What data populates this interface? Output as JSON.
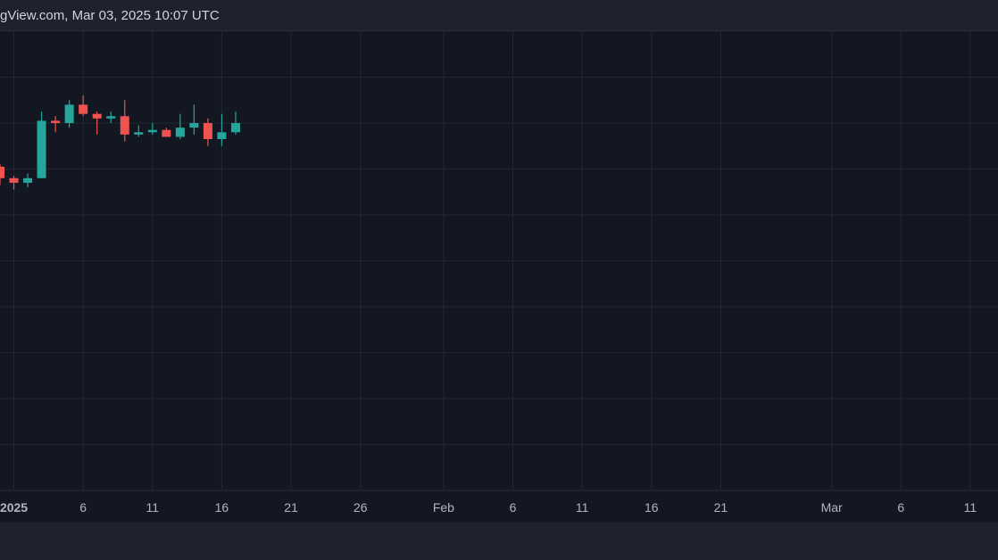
{
  "header": {
    "attribution": "gView.com, Mar 03, 2025 10:07 UTC"
  },
  "colors": {
    "background": "#131722",
    "grid": "#232734",
    "up": "#26a69a",
    "down": "#ef5350",
    "trendline": "#e6e6e6",
    "axis_text": "#b2b5be"
  },
  "chart_data": {
    "type": "candlestick",
    "title": "",
    "xlabel": "",
    "ylabel": "",
    "grid": true,
    "x_ticks": [
      "2025",
      "6",
      "11",
      "16",
      "21",
      "26",
      "Feb",
      "6",
      "11",
      "16",
      "21",
      "Mar",
      "6",
      "11"
    ],
    "x_tick_dates": [
      "2025-01-01",
      "2025-01-06",
      "2025-01-11",
      "2025-01-16",
      "2025-01-21",
      "2025-01-26",
      "2025-02-01",
      "2025-02-06",
      "2025-02-11",
      "2025-02-16",
      "2025-02-21",
      "2025-03-01",
      "2025-03-06",
      "2025-03-11"
    ],
    "x_range": [
      "2024-12-31",
      "2025-03-13"
    ],
    "y_range": [
      0,
      100
    ],
    "candles": [
      {
        "date": "2024-12-31",
        "open": 70.5,
        "high": 71.0,
        "low": 66.5,
        "close": 68.0
      },
      {
        "date": "2025-01-01",
        "open": 68.0,
        "high": 68.5,
        "low": 65.5,
        "close": 67.0
      },
      {
        "date": "2025-01-02",
        "open": 67.0,
        "high": 69.0,
        "low": 66.0,
        "close": 68.0
      },
      {
        "date": "2025-01-03",
        "open": 68.0,
        "high": 82.5,
        "low": 68.0,
        "close": 80.5
      },
      {
        "date": "2025-01-04",
        "open": 80.5,
        "high": 81.5,
        "low": 78.0,
        "close": 80.0
      },
      {
        "date": "2025-01-05",
        "open": 80.0,
        "high": 85.0,
        "low": 79.0,
        "close": 84.0
      },
      {
        "date": "2025-01-06",
        "open": 84.0,
        "high": 86.0,
        "low": 81.5,
        "close": 82.0
      },
      {
        "date": "2025-01-07",
        "open": 82.0,
        "high": 82.5,
        "low": 77.5,
        "close": 81.0
      },
      {
        "date": "2025-01-08",
        "open": 81.0,
        "high": 82.5,
        "low": 80.0,
        "close": 81.5
      },
      {
        "date": "2025-01-09",
        "open": 81.5,
        "high": 85.0,
        "low": 76.0,
        "close": 77.5
      },
      {
        "date": "2025-01-10",
        "open": 77.5,
        "high": 79.5,
        "low": 77.0,
        "close": 78.0
      },
      {
        "date": "2025-01-11",
        "open": 78.0,
        "high": 80.0,
        "low": 77.5,
        "close": 78.5
      },
      {
        "date": "2025-01-12",
        "open": 78.5,
        "high": 79.0,
        "low": 77.0,
        "close": 77.0
      },
      {
        "date": "2025-01-13",
        "open": 77.0,
        "high": 82.0,
        "low": 76.5,
        "close": 79.0
      },
      {
        "date": "2025-01-14",
        "open": 79.0,
        "high": 84.0,
        "low": 77.5,
        "close": 80.0
      },
      {
        "date": "2025-01-15",
        "open": 80.0,
        "high": 81.0,
        "low": 75.0,
        "close": 76.5
      },
      {
        "date": "2025-01-16",
        "open": 76.5,
        "high": 82.0,
        "low": 75.0,
        "close": 78.0
      },
      {
        "date": "2025-01-17",
        "open": 78.0,
        "high": 82.5,
        "low": 77.5,
        "close": 80.0
      }
    ]
  }
}
